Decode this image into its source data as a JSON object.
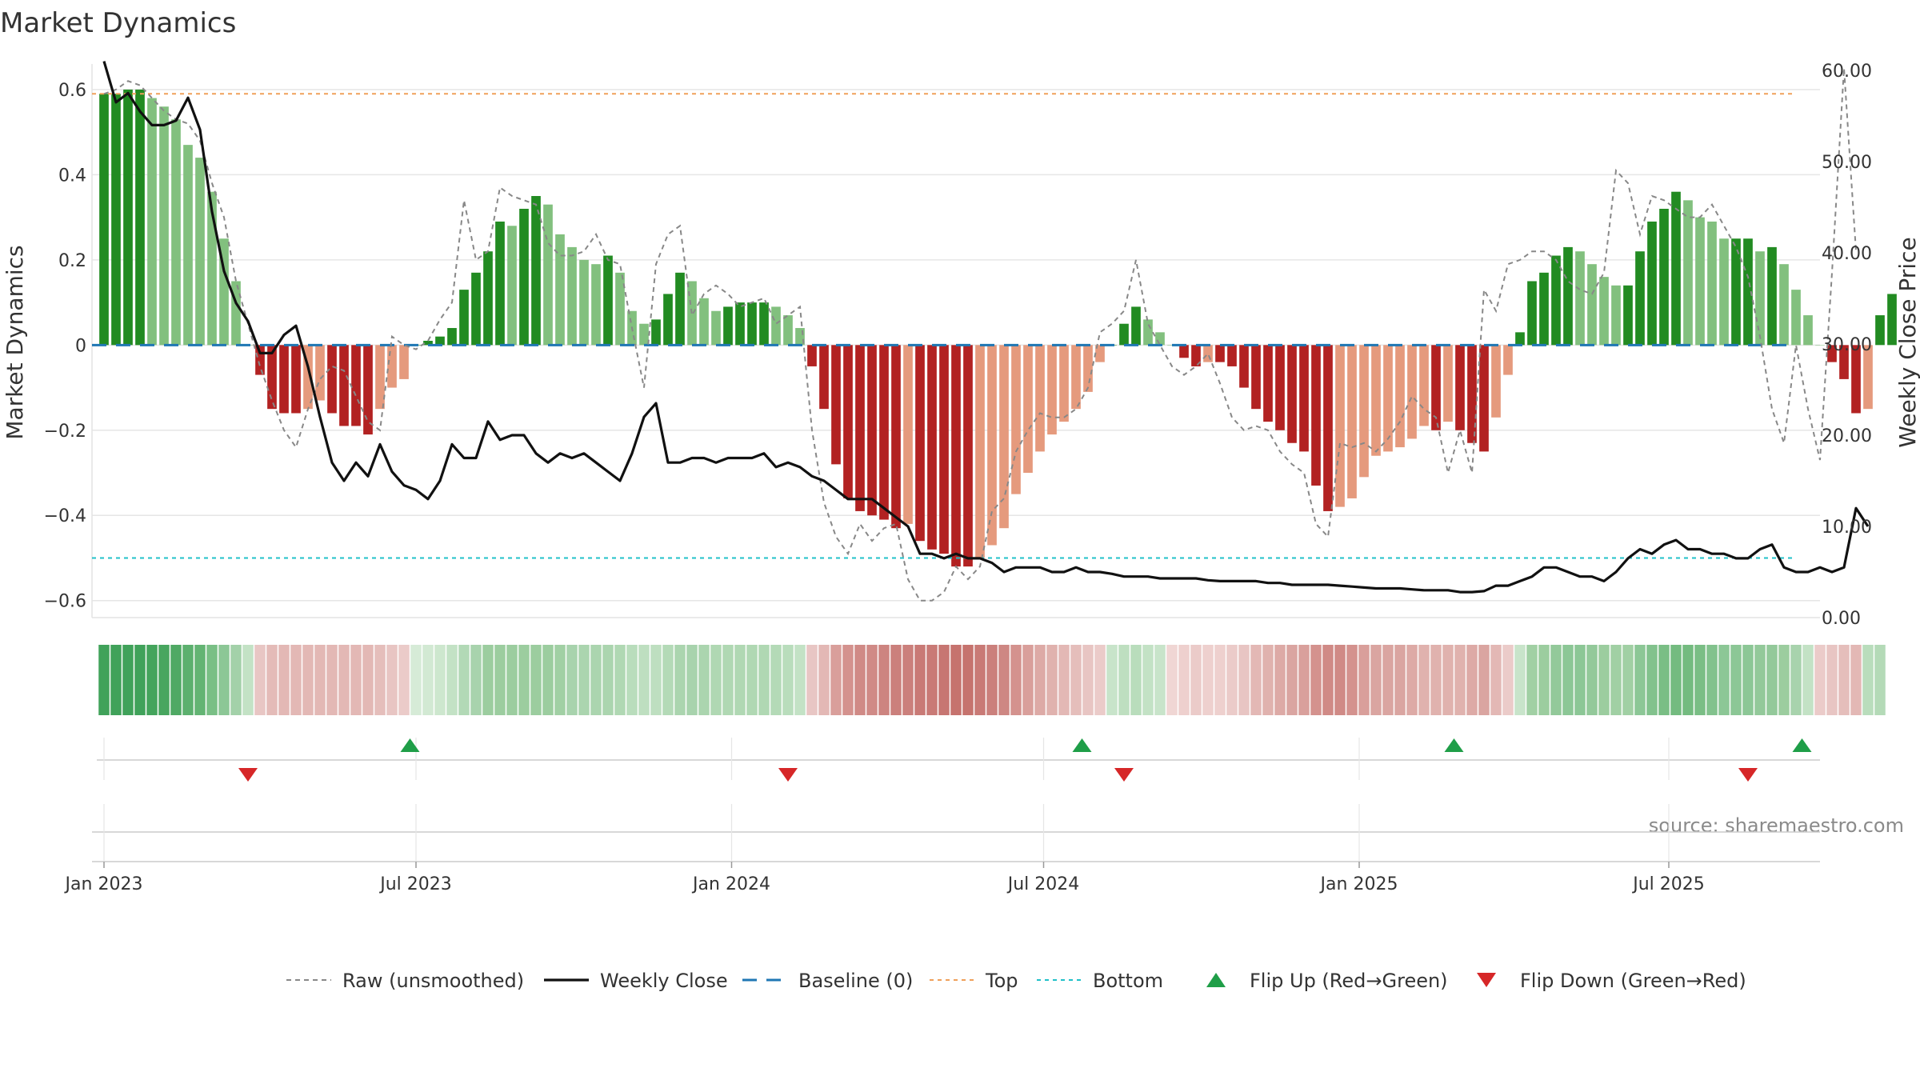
{
  "chart_data": {
    "type": "bar",
    "title": "Market Dynamics",
    "ylabel_left": "Market Dynamics",
    "ylabel_right": "Weekly Close Price",
    "source": "source: sharemaestro.com",
    "left_ylim": [
      -0.64,
      0.66
    ],
    "left_ticks": [
      {
        "v": 0.6,
        "label": "0.6"
      },
      {
        "v": 0.4,
        "label": "0.4"
      },
      {
        "v": 0.2,
        "label": "0.2"
      },
      {
        "v": 0,
        "label": "0"
      },
      {
        "v": -0.2,
        "label": "−0.2"
      },
      {
        "v": -0.4,
        "label": "−0.4"
      },
      {
        "v": -0.6,
        "label": "−0.6"
      }
    ],
    "right_ylim": [
      0,
      60.7
    ],
    "right_ticks": [
      {
        "v": 60,
        "label": "60.00"
      },
      {
        "v": 50,
        "label": "50.00"
      },
      {
        "v": 40,
        "label": "40.00"
      },
      {
        "v": 30,
        "label": "30.00"
      },
      {
        "v": 20,
        "label": "20.00"
      },
      {
        "v": 10,
        "label": "10.00"
      },
      {
        "v": 0,
        "label": "0.00"
      }
    ],
    "x_range_weeks": [
      -1,
      143
    ],
    "x_ticks": [
      {
        "week": 0,
        "label": "Jan 2023"
      },
      {
        "week": 26,
        "label": "Jul 2023"
      },
      {
        "week": 52.3,
        "label": "Jan 2024"
      },
      {
        "week": 78.3,
        "label": "Jul 2024"
      },
      {
        "week": 104.6,
        "label": "Jan 2025"
      },
      {
        "week": 130.4,
        "label": "Jul 2025"
      }
    ],
    "top_line": 0.59,
    "bottom_line": -0.5,
    "baseline": 0,
    "bars": [
      0.59,
      0.59,
      0.6,
      0.6,
      0.58,
      0.56,
      0.53,
      0.47,
      0.44,
      0.36,
      0.25,
      0.15,
      0.0,
      -0.07,
      -0.15,
      -0.16,
      -0.16,
      -0.15,
      -0.13,
      -0.16,
      -0.19,
      -0.19,
      -0.21,
      -0.15,
      -0.1,
      -0.08,
      0.0,
      0.01,
      0.02,
      0.04,
      0.13,
      0.17,
      0.22,
      0.29,
      0.28,
      0.32,
      0.35,
      0.33,
      0.26,
      0.23,
      0.2,
      0.19,
      0.21,
      0.17,
      0.08,
      0.05,
      0.06,
      0.12,
      0.17,
      0.15,
      0.11,
      0.08,
      0.09,
      0.1,
      0.1,
      0.1,
      0.09,
      0.07,
      0.04,
      -0.05,
      -0.15,
      -0.28,
      -0.36,
      -0.39,
      -0.4,
      -0.41,
      -0.43,
      -0.42,
      -0.46,
      -0.48,
      -0.49,
      -0.52,
      -0.52,
      -0.5,
      -0.47,
      -0.43,
      -0.35,
      -0.3,
      -0.25,
      -0.21,
      -0.18,
      -0.15,
      -0.11,
      -0.04,
      0.0,
      0.05,
      0.09,
      0.06,
      0.03,
      0.0,
      -0.03,
      -0.05,
      -0.04,
      -0.04,
      -0.05,
      -0.1,
      -0.15,
      -0.18,
      -0.2,
      -0.23,
      -0.25,
      -0.33,
      -0.39,
      -0.38,
      -0.36,
      -0.31,
      -0.26,
      -0.25,
      -0.24,
      -0.22,
      -0.19,
      -0.2,
      -0.18,
      -0.2,
      -0.23,
      -0.25,
      -0.17,
      -0.07,
      0.03,
      0.15,
      0.17,
      0.21,
      0.23,
      0.22,
      0.19,
      0.16,
      0.14,
      0.14,
      0.22,
      0.29,
      0.32,
      0.36,
      0.34,
      0.3,
      0.29,
      0.25,
      0.25,
      0.25,
      0.22,
      0.23,
      0.19,
      0.13,
      0.07,
      0.0,
      -0.04,
      -0.08,
      -0.16,
      -0.15,
      0.07,
      0.12
    ],
    "raw": [
      0.59,
      0.6,
      0.62,
      0.61,
      0.58,
      0.55,
      0.53,
      0.52,
      0.48,
      0.38,
      0.3,
      0.15,
      0.05,
      -0.05,
      -0.13,
      -0.2,
      -0.24,
      -0.15,
      -0.08,
      -0.05,
      -0.06,
      -0.12,
      -0.18,
      -0.2,
      0.02,
      0.0,
      -0.01,
      0.01,
      0.06,
      0.1,
      0.34,
      0.2,
      0.22,
      0.37,
      0.35,
      0.34,
      0.33,
      0.24,
      0.21,
      0.21,
      0.22,
      0.26,
      0.2,
      0.19,
      0.04,
      -0.1,
      0.19,
      0.26,
      0.28,
      0.07,
      0.12,
      0.14,
      0.12,
      0.09,
      0.1,
      0.11,
      0.05,
      0.07,
      0.09,
      -0.2,
      -0.37,
      -0.45,
      -0.49,
      -0.42,
      -0.46,
      -0.43,
      -0.42,
      -0.55,
      -0.6,
      -0.6,
      -0.58,
      -0.52,
      -0.55,
      -0.52,
      -0.39,
      -0.36,
      -0.25,
      -0.2,
      -0.16,
      -0.17,
      -0.17,
      -0.15,
      -0.1,
      0.03,
      0.05,
      0.08,
      0.2,
      0.05,
      0.0,
      -0.05,
      -0.07,
      -0.05,
      -0.02,
      -0.09,
      -0.17,
      -0.2,
      -0.19,
      -0.2,
      -0.25,
      -0.28,
      -0.3,
      -0.42,
      -0.45,
      -0.23,
      -0.24,
      -0.23,
      -0.25,
      -0.22,
      -0.18,
      -0.12,
      -0.15,
      -0.17,
      -0.3,
      -0.2,
      -0.3,
      0.13,
      0.08,
      0.19,
      0.2,
      0.22,
      0.22,
      0.2,
      0.15,
      0.13,
      0.12,
      0.17,
      0.41,
      0.38,
      0.26,
      0.35,
      0.34,
      0.32,
      0.3,
      0.3,
      0.33,
      0.28,
      0.23,
      0.16,
      0.02,
      -0.15,
      -0.23,
      0.0,
      -0.15,
      -0.27,
      0.17,
      0.65,
      0.22
    ],
    "close": [
      61.0,
      56.5,
      57.5,
      55.5,
      54.0,
      54.0,
      54.5,
      57.0,
      53.5,
      44.5,
      38.0,
      34.5,
      32.5,
      29.0,
      29.0,
      31.0,
      32.0,
      27.5,
      22.0,
      17.0,
      15.0,
      17.0,
      15.5,
      19.0,
      16.0,
      14.5,
      14.0,
      13.0,
      15.0,
      19.0,
      17.5,
      17.5,
      21.5,
      19.5,
      20.0,
      20.0,
      18.0,
      17.0,
      18.0,
      17.5,
      18.0,
      17.0,
      16.0,
      15.0,
      18.0,
      22.0,
      23.5,
      17.0,
      17.0,
      17.5,
      17.5,
      17.0,
      17.5,
      17.5,
      17.5,
      18.0,
      16.5,
      17.0,
      16.5,
      15.5,
      15.0,
      14.0,
      13.0,
      13.0,
      13.0,
      12.0,
      11.0,
      10.0,
      7.0,
      7.0,
      6.5,
      7.0,
      6.5,
      6.5,
      6.0,
      5.0,
      5.5,
      5.5,
      5.5,
      5.0,
      5.0,
      5.5,
      5.0,
      5.0,
      4.8,
      4.5,
      4.5,
      4.5,
      4.3,
      4.3,
      4.3,
      4.3,
      4.1,
      4.0,
      4.0,
      4.0,
      4.0,
      3.8,
      3.8,
      3.6,
      3.6,
      3.6,
      3.6,
      3.5,
      3.4,
      3.3,
      3.2,
      3.2,
      3.2,
      3.1,
      3.0,
      3.0,
      3.0,
      2.8,
      2.8,
      2.9,
      3.5,
      3.5,
      4.0,
      4.5,
      5.5,
      5.5,
      5.0,
      4.5,
      4.5,
      4.0,
      5.0,
      6.5,
      7.5,
      7.0,
      8.0,
      8.5,
      7.5,
      7.5,
      7.0,
      7.0,
      6.5,
      6.5,
      7.5,
      8.0,
      5.5,
      5.0,
      5.0,
      5.5,
      5.0,
      5.5,
      12.0,
      10.0
    ],
    "band_colors": [
      "#40a25a",
      "#40a25a",
      "#40a25a",
      "#40a25a",
      "#44a45c",
      "#48a65f",
      "#4fa964",
      "#5cb06e",
      "#63b473",
      "#79bf85",
      "#8cc796",
      "#a3d1a9",
      "#c3e2c5",
      "#e8c6c4",
      "#e4bbb8",
      "#e3b8b5",
      "#e3b8b5",
      "#e3b8b5",
      "#e3b8b5",
      "#e3b8b5",
      "#e3b8b5",
      "#e3b8b5",
      "#e3b8b5",
      "#e5bebb",
      "#e8c5c3",
      "#ebcbc9",
      "#d6ebd7",
      "#d2e9d3",
      "#cde7ce",
      "#c3e2c5",
      "#b2d9b6",
      "#a8d3ad",
      "#9ccd9f",
      "#9ccd9f",
      "#9ccd9f",
      "#9ccd9f",
      "#9ccd9f",
      "#9ccd9f",
      "#a1d0a4",
      "#a8d3ad",
      "#abd5af",
      "#abd5af",
      "#abd5af",
      "#b0d8b3",
      "#b9ddbc",
      "#bedfc0",
      "#bedfc0",
      "#b4dab7",
      "#abd5af",
      "#a8d3ad",
      "#abd5af",
      "#b0d8b3",
      "#b0d8b3",
      "#b0d8b3",
      "#b0d8b3",
      "#b0d8b3",
      "#b4dab7",
      "#b9ddbc",
      "#c3e2c5",
      "#e8c6c4",
      "#e3b8b5",
      "#d99f9b",
      "#d4928e",
      "#d08a86",
      "#d08a86",
      "#cd8480",
      "#cb807c",
      "#cb807c",
      "#c97a76",
      "#c97a76",
      "#c77672",
      "#c6736e",
      "#c6736e",
      "#c97a76",
      "#cb807c",
      "#ce8783",
      "#d4928e",
      "#d99f9b",
      "#ddaaa6",
      "#e0b2ae",
      "#e3b8b5",
      "#e5bebb",
      "#e8c5c3",
      "#ebcbc9",
      "#c8e4ca",
      "#bedfc0",
      "#b9ddbc",
      "#c3e2c5",
      "#c8e4ca",
      "#f0d6d4",
      "#eed0ce",
      "#ebcbc9",
      "#eed0ce",
      "#eed0ce",
      "#ebcbc9",
      "#e8c5c3",
      "#e3b8b5",
      "#e0b2ae",
      "#ddaaa6",
      "#daa5a1",
      "#d9a09c",
      "#d4928e",
      "#d08a86",
      "#d08a86",
      "#d4928e",
      "#d99f9b",
      "#daa5a1",
      "#daa5a1",
      "#daa5a1",
      "#ddaaa6",
      "#e0b2ae",
      "#e0b2ae",
      "#e0b2ae",
      "#e0b2ae",
      "#ddaaa6",
      "#daa5a1",
      "#e3b8b5",
      "#ebcbc9",
      "#c8e4ca",
      "#a1d0a4",
      "#9ccd9f",
      "#93c99a",
      "#8cc796",
      "#8cc796",
      "#93c99a",
      "#9ccd9f",
      "#a1d0a4",
      "#a1d0a4",
      "#8cc796",
      "#82c28d",
      "#7abe85",
      "#74bb80",
      "#74bb80",
      "#7abe85",
      "#82c28d",
      "#8cc796",
      "#8cc796",
      "#8cc796",
      "#93c99a",
      "#93c99a",
      "#9ccd9f",
      "#a8d3ad",
      "#c3e2c5",
      "#ebcbc9",
      "#e8c5c3",
      "#e5bebb",
      "#e3b8b5",
      "#b9ddbc",
      "#b4dab7"
    ],
    "flips_up_weeks": [
      25.5,
      81.5,
      112.5,
      141.5
    ],
    "flips_down_weeks": [
      12,
      57,
      85,
      137
    ],
    "legend": [
      {
        "key": "raw",
        "label": "Raw (unsmoothed)"
      },
      {
        "key": "close",
        "label": "Weekly Close"
      },
      {
        "key": "baseline",
        "label": "Baseline (0)"
      },
      {
        "key": "top",
        "label": "Top"
      },
      {
        "key": "bottom",
        "label": "Bottom"
      },
      {
        "key": "flip_up",
        "label": "Flip Up (Red→Green)"
      },
      {
        "key": "flip_down",
        "label": "Flip Down (Green→Red)"
      }
    ],
    "colors": {
      "strong_green": "#228b22",
      "light_green": "#82c07e",
      "strong_red": "#b22222",
      "light_red": "#e59a7d",
      "close_line": "#111111",
      "raw_line": "#888888",
      "baseline": "#1f77b4",
      "top": "#f0a05a",
      "bottom": "#20c0c8",
      "flip_up": "#1f9e48",
      "flip_down": "#d62728",
      "grid": "#e6e6e6"
    }
  }
}
